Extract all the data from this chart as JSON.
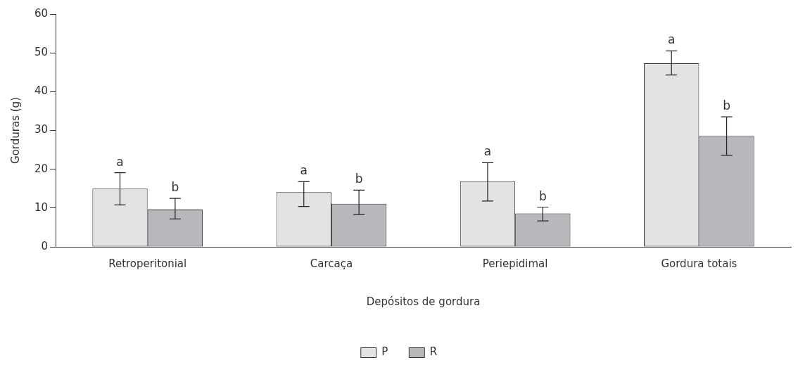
{
  "chart_data": {
    "type": "bar",
    "xlabel": "Depósitos de gordura",
    "ylabel": "Gorduras (g)",
    "categories": [
      "Retroperitonial",
      "Carcaça",
      "Periepidimal",
      "Gordura totais"
    ],
    "series": [
      {
        "name": "P",
        "color": "#e3e3e3",
        "values": [
          15.0,
          14.1,
          16.9,
          47.3
        ],
        "errors": [
          [
            10.8,
            19.1
          ],
          [
            10.4,
            16.8
          ],
          [
            11.8,
            21.7
          ],
          [
            44.3,
            50.5
          ]
        ],
        "value_labels": [
          "a",
          "a",
          "a",
          "a"
        ]
      },
      {
        "name": "R",
        "color": "#b7b8bc",
        "values": [
          9.6,
          11.1,
          8.6,
          28.6
        ],
        "errors": [
          [
            7.2,
            12.5
          ],
          [
            8.3,
            14.6
          ],
          [
            6.7,
            10.2
          ],
          [
            23.6,
            33.5
          ]
        ],
        "value_labels": [
          "b",
          "b",
          "b",
          "b"
        ]
      }
    ],
    "ylim": [
      0,
      60
    ],
    "yticks": [
      0,
      10,
      20,
      30,
      40,
      50,
      60
    ],
    "grid": false,
    "legend": "bottom"
  }
}
